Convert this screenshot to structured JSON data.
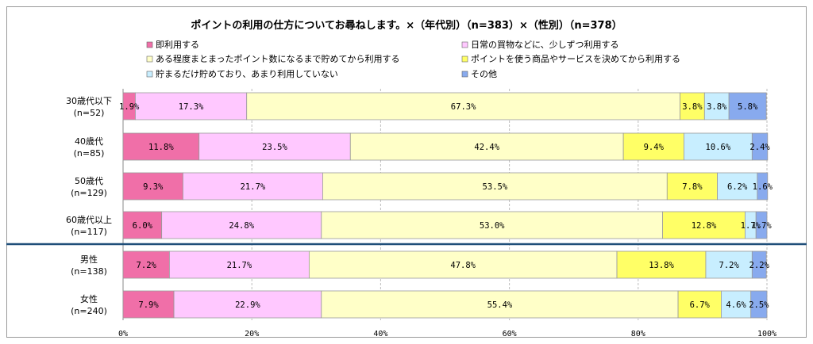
{
  "chart_data": {
    "type": "bar",
    "orientation": "horizontal",
    "stacked": true,
    "title": "ポイントの利用の仕方についてお尋ねします。×（年代別）（n=383）×（性別）（n=378）",
    "categories": [
      [
        "30歳代以下",
        "(n=52)"
      ],
      [
        "40歳代",
        "(n=85)"
      ],
      [
        "50歳代",
        "(n=129)"
      ],
      [
        "60歳代以上",
        "(n=117)"
      ],
      [
        "男性",
        "(n=138)"
      ],
      [
        "女性",
        "(n=240)"
      ]
    ],
    "series": [
      {
        "name": "即利用する",
        "color": "#f06fa8",
        "values": [
          1.9,
          11.8,
          9.3,
          6.0,
          7.2,
          7.9
        ]
      },
      {
        "name": "日常の買物などに、少しずつ利用する",
        "color": "#ffc8ff",
        "values": [
          17.3,
          23.5,
          21.7,
          24.8,
          21.7,
          22.9
        ]
      },
      {
        "name": "ある程度まとまったポイント数になるまで貯めてから利用する",
        "color": "#ffffc8",
        "values": [
          67.3,
          42.4,
          53.5,
          53.0,
          47.8,
          55.4
        ]
      },
      {
        "name": "ポイントを使う商品やサービスを決めてから利用する",
        "color": "#ffff66",
        "values": [
          3.8,
          9.4,
          7.8,
          12.8,
          13.8,
          6.7
        ]
      },
      {
        "name": "貯まるだけ貯めており、あまり利用していない",
        "color": "#c8eeff",
        "values": [
          3.8,
          10.6,
          6.2,
          1.7,
          7.2,
          4.6
        ]
      },
      {
        "name": "その他",
        "color": "#88aaee",
        "values": [
          5.8,
          2.4,
          1.6,
          1.7,
          2.2,
          2.5
        ]
      }
    ],
    "xlim": [
      0,
      100
    ],
    "xticks": [
      "0%",
      "20%",
      "40%",
      "60%",
      "80%",
      "100%"
    ],
    "grid": true,
    "legend_position": "top",
    "divider_after_index": 3,
    "divider_color": "#1f4e79"
  }
}
